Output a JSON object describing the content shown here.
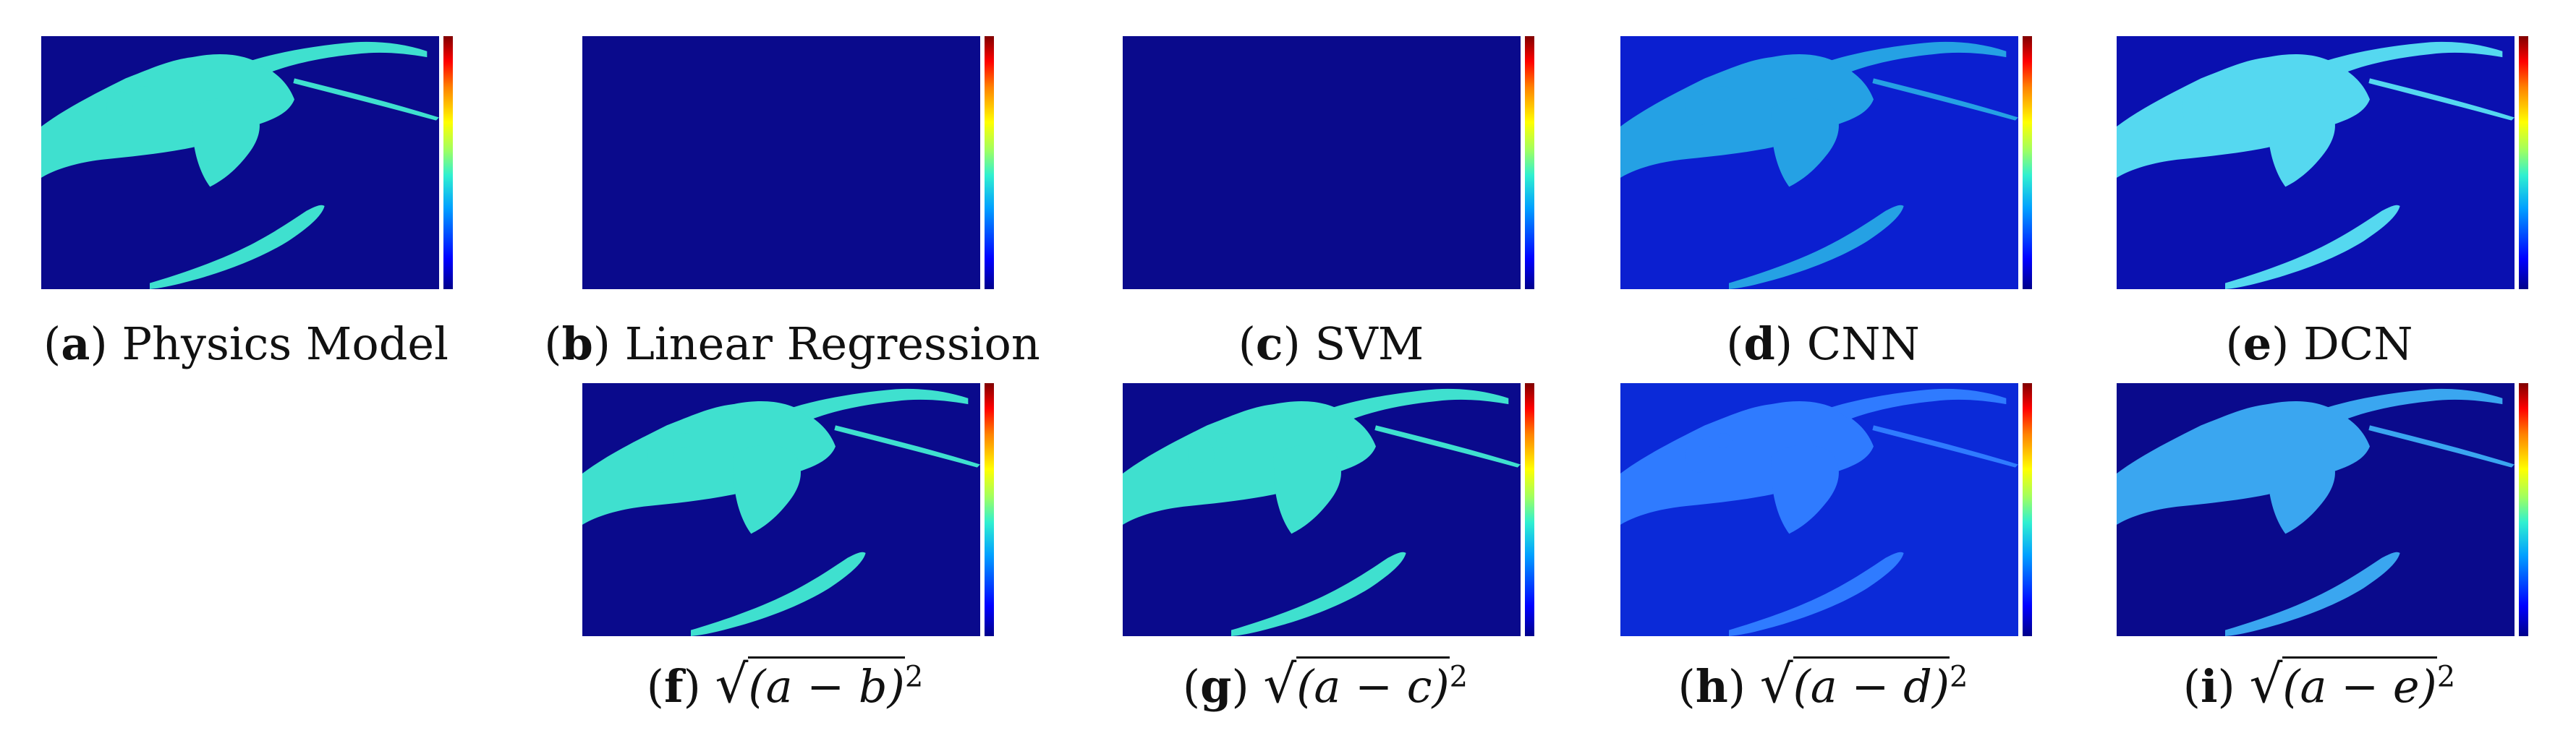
{
  "colors": {
    "map_background": "#0a0a8c",
    "land_high": "#40e0d0",
    "land_mid": "#2f7bff",
    "land_faint": "#2050e0"
  },
  "panels": {
    "a": {
      "letter": "a",
      "caption": "Physics Model"
    },
    "b": {
      "letter": "b",
      "caption": "Linear Regression"
    },
    "c": {
      "letter": "c",
      "caption": "SVM"
    },
    "d": {
      "letter": "d",
      "caption": "CNN"
    },
    "e": {
      "letter": "e",
      "caption": "DCN"
    },
    "f": {
      "letter": "f",
      "sqrt": "√",
      "radicand": "(a − b)",
      "power": "2"
    },
    "g": {
      "letter": "g",
      "sqrt": "√",
      "radicand": "(a − c)",
      "power": "2"
    },
    "h": {
      "letter": "h",
      "sqrt": "√",
      "radicand": "(a − d)",
      "power": "2"
    },
    "i": {
      "letter": "i",
      "sqrt": "√",
      "radicand": "(a − e)",
      "power": "2"
    }
  }
}
